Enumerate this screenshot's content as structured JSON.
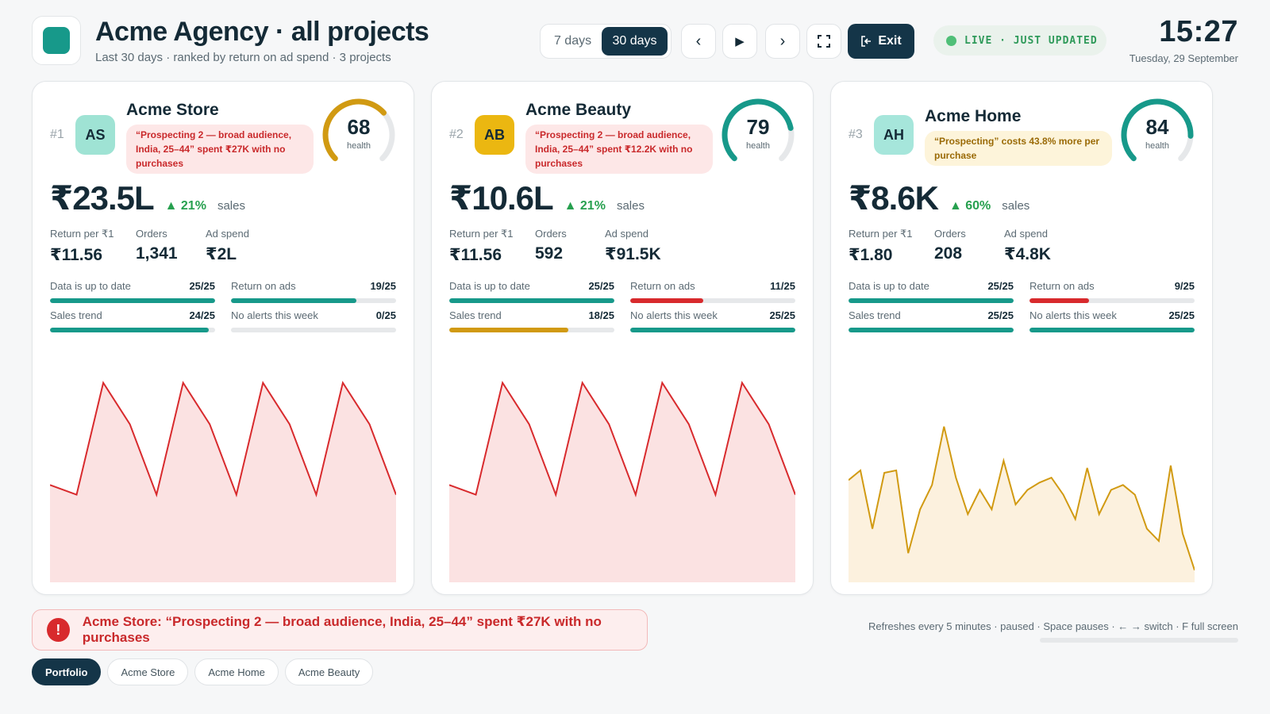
{
  "header": {
    "title": "Acme Agency · all projects",
    "subtitle": "Last 30 days · ranked by return on ad spend · 3 projects",
    "range_options": [
      "7 days",
      "30 days"
    ],
    "selected_range": "30 days",
    "controls": {
      "prev": "‹",
      "play": "▶",
      "next": "›",
      "fullscreen": "⛶"
    },
    "exit_label": "Exit",
    "live_label": "LIVE · JUST UPDATED",
    "time": "15:27",
    "date": "Tuesday, 29 September"
  },
  "colors": {
    "teal": "#17998a",
    "amber": "#d19a12",
    "red": "#d82a2d",
    "navy": "#143548",
    "spark_red_fill": "#fbe2e2",
    "spark_amber_fill": "#fcf1de"
  },
  "metric_labels": {
    "sales": "sales",
    "return": "Return per ₹1",
    "orders": "Orders",
    "spend": "Ad spend",
    "health": "health"
  },
  "projects": [
    {
      "rank": "#1",
      "initials": "AS",
      "name": "Acme Store",
      "avatar_color": "#9fe3d4",
      "alert": "“Prospecting 2 — broad audience, India, 25–44” spent ₹27K with no purchases",
      "alert_tone": "red",
      "health": 68,
      "health_color": "#d19a12",
      "sales": "₹23.5L",
      "sales_change": "▲ 21%",
      "return_per": "₹11.56",
      "orders": "1,341",
      "ad_spend": "₹2L",
      "checks": [
        {
          "label": "Data is up to date",
          "score": "25/25",
          "value": 25,
          "color": "#17998a"
        },
        {
          "label": "Return on ads",
          "score": "19/25",
          "value": 19,
          "color": "#17998a"
        },
        {
          "label": "Sales trend",
          "score": "24/25",
          "value": 24,
          "color": "#17998a"
        },
        {
          "label": "No alerts this week",
          "score": "0/25",
          "value": 0,
          "color": "#17998a"
        }
      ],
      "trend": {
        "color": "#d82a2d",
        "fill": "#fbe2e2",
        "values": [
          40,
          36,
          82,
          65,
          36,
          82,
          65,
          36,
          82,
          65,
          36,
          82,
          65,
          36
        ]
      }
    },
    {
      "rank": "#2",
      "initials": "AB",
      "name": "Acme Beauty",
      "avatar_color": "#ebb711",
      "alert": "“Prospecting 2 — broad audience, India, 25–44” spent ₹12.2K with no purchases",
      "alert_tone": "red",
      "health": 79,
      "health_color": "#17998a",
      "sales": "₹10.6L",
      "sales_change": "▲ 21%",
      "return_per": "₹11.56",
      "orders": "592",
      "ad_spend": "₹91.5K",
      "checks": [
        {
          "label": "Data is up to date",
          "score": "25/25",
          "value": 25,
          "color": "#17998a"
        },
        {
          "label": "Return on ads",
          "score": "11/25",
          "value": 11,
          "color": "#d82a2d"
        },
        {
          "label": "Sales trend",
          "score": "18/25",
          "value": 18,
          "color": "#d19a12"
        },
        {
          "label": "No alerts this week",
          "score": "25/25",
          "value": 25,
          "color": "#17998a"
        }
      ],
      "trend": {
        "color": "#d82a2d",
        "fill": "#fbe2e2",
        "values": [
          40,
          36,
          82,
          65,
          36,
          82,
          65,
          36,
          82,
          65,
          36,
          82,
          65,
          36
        ]
      }
    },
    {
      "rank": "#3",
      "initials": "AH",
      "name": "Acme Home",
      "avatar_color": "#a6e6db",
      "alert": "“Prospecting” costs 43.8% more per purchase",
      "alert_tone": "yellow",
      "health": 84,
      "health_color": "#17998a",
      "sales": "₹8.6K",
      "sales_change": "▲ 60%",
      "return_per": "₹1.80",
      "orders": "208",
      "ad_spend": "₹4.8K",
      "checks": [
        {
          "label": "Data is up to date",
          "score": "25/25",
          "value": 25,
          "color": "#17998a"
        },
        {
          "label": "Return on ads",
          "score": "9/25",
          "value": 9,
          "color": "#d82a2d"
        },
        {
          "label": "Sales trend",
          "score": "25/25",
          "value": 25,
          "color": "#17998a"
        },
        {
          "label": "No alerts this week",
          "score": "25/25",
          "value": 25,
          "color": "#17998a"
        }
      ],
      "trend": {
        "color": "#d19a12",
        "fill": "#fcf1de",
        "values": [
          42,
          46,
          22,
          45,
          46,
          12,
          30,
          40,
          64,
          43,
          28,
          38,
          30,
          50,
          32,
          38,
          41,
          43,
          36,
          26,
          47,
          28,
          38,
          40,
          36,
          22,
          17,
          48,
          20,
          5
        ]
      }
    }
  ],
  "footer": {
    "alert_icon": "!",
    "alert_text": "Acme Store: “Prospecting 2 — broad audience, India, 25–44” spent ₹27K with no purchases",
    "refresh_note": "Refreshes every 5 minutes · paused · Space pauses · ← → switch · F full screen",
    "refresh_progress": 0,
    "tabs": [
      "Portfolio",
      "Acme Store",
      "Acme Home",
      "Acme Beauty"
    ],
    "active_tab": "Portfolio"
  }
}
